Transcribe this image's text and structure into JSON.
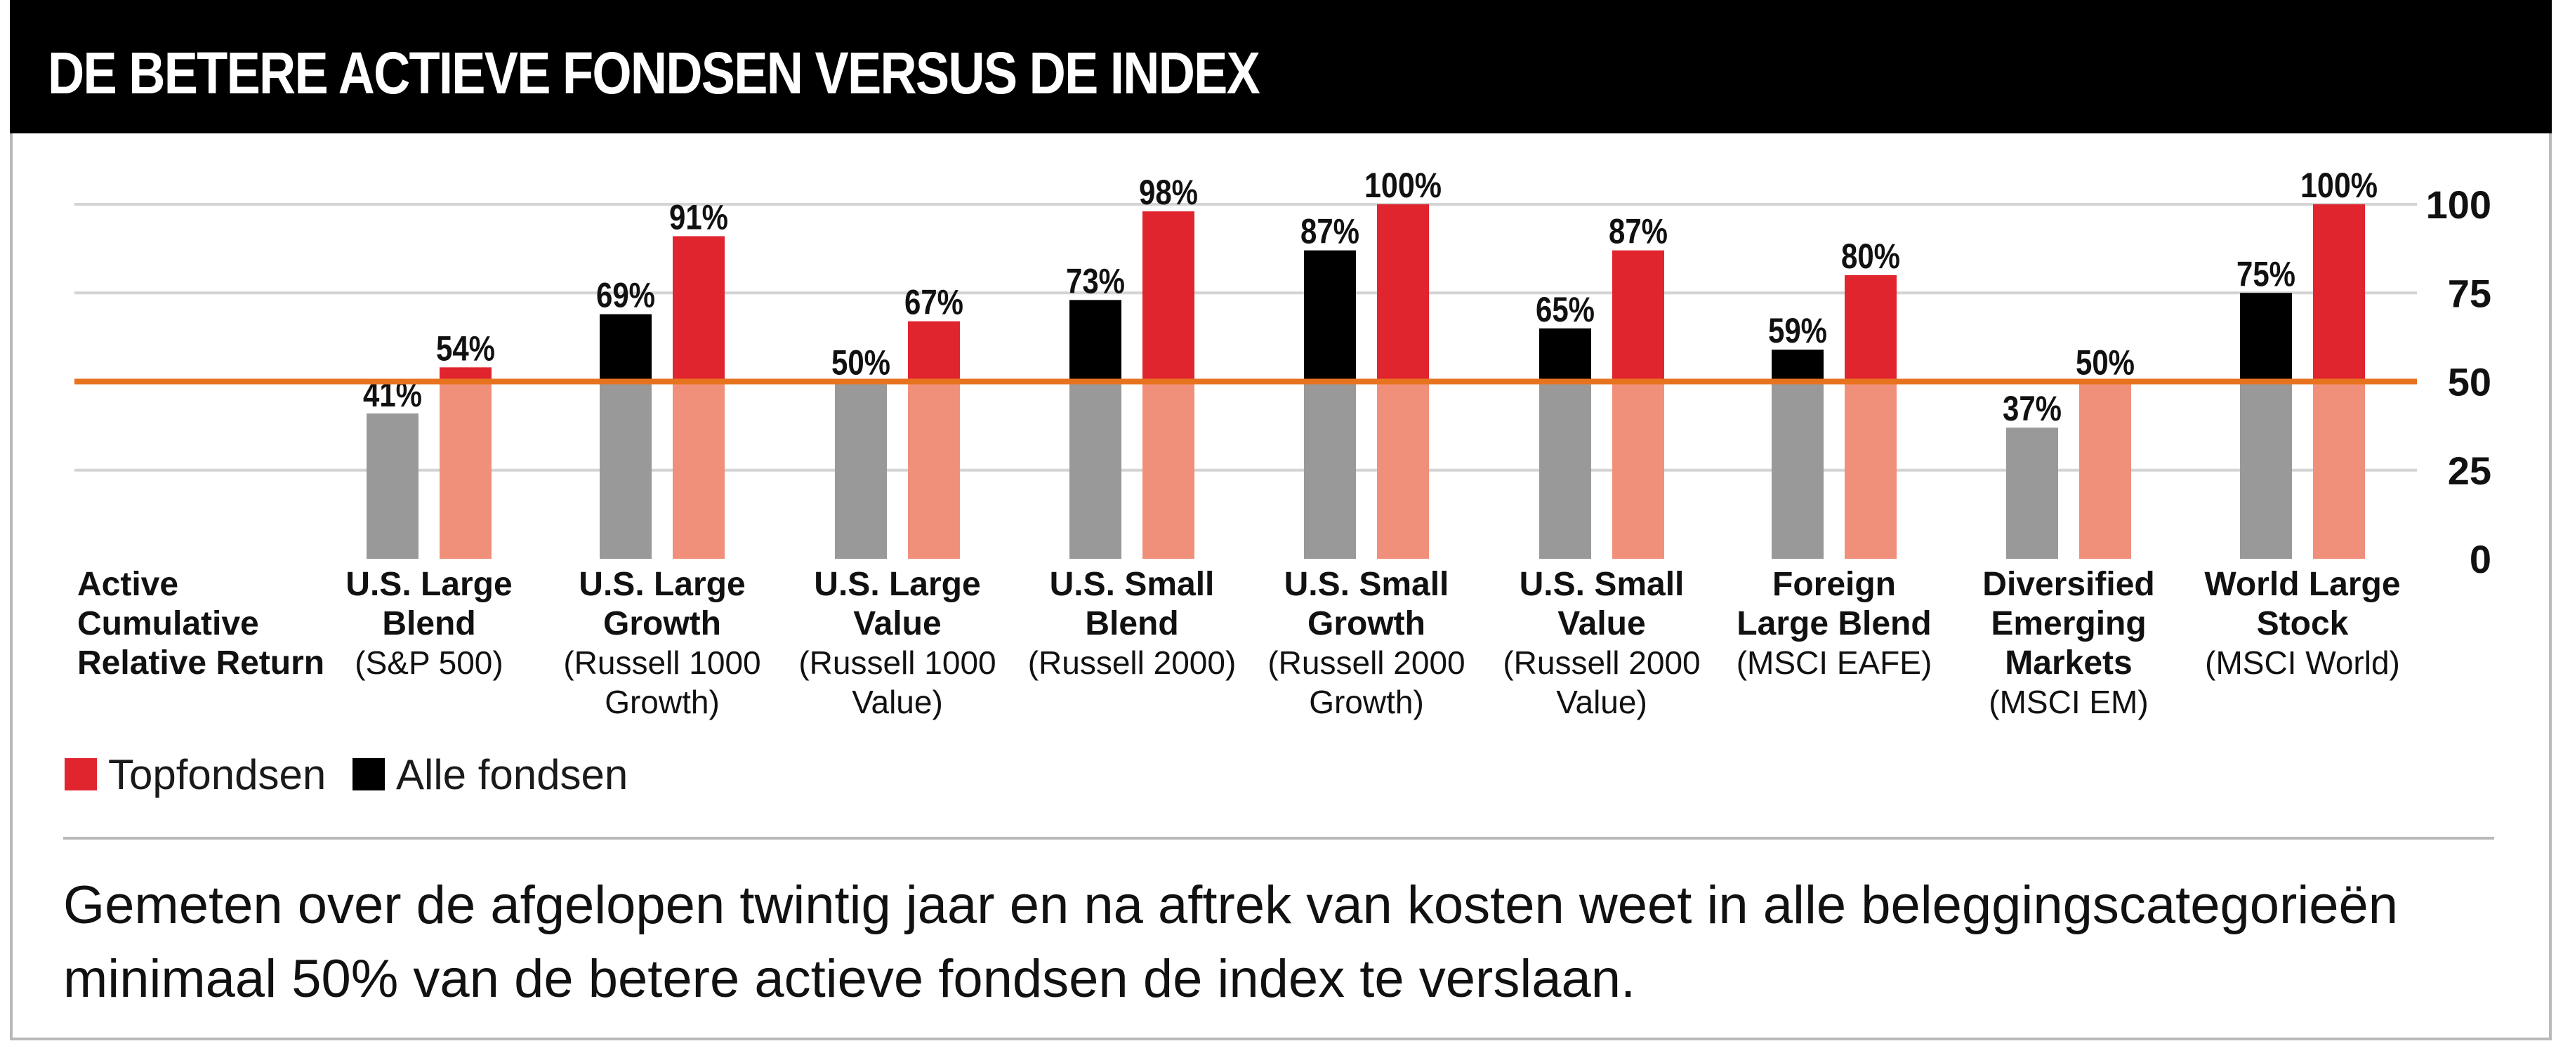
{
  "header": {
    "title": "DE BETERE ACTIEVE FONDSEN VERSUS DE INDEX"
  },
  "colors": {
    "top": "#e0252f",
    "all": "#000000",
    "top_below": "#f0907a",
    "all_below": "#999999",
    "reference_line": "#e8731f",
    "gridline": "#d4d4d4"
  },
  "chart_data": {
    "type": "bar",
    "title": "DE BETERE ACTIEVE FONDSEN VERSUS DE INDEX",
    "row_label": "Active Cumulative Relative Return",
    "row_label_lines": [
      "Active",
      "Cumulative",
      "Relative Return"
    ],
    "categories": [
      "U.S. Large Blend (S&P 500)",
      "U.S. Large Growth (Russell 1000 Growth)",
      "U.S. Large Value (Russell 1000 Value)",
      "U.S. Small Blend (Russell 2000)",
      "U.S. Small Growth (Russell 2000 Growth)",
      "U.S. Small Value (Russell 2000 Value)",
      "Foreign Large Blend (MSCI EAFE)",
      "Diversified Emerging Markets (MSCI EM)",
      "World Large Stock (MSCI World)"
    ],
    "category_labels": [
      {
        "bold": [
          "U.S. Large",
          "Blend"
        ],
        "normal": [
          "(S&P 500)"
        ]
      },
      {
        "bold": [
          "U.S. Large",
          "Growth"
        ],
        "normal": [
          "(Russell 1000",
          "Growth)"
        ]
      },
      {
        "bold": [
          "U.S. Large",
          "Value"
        ],
        "normal": [
          "(Russell 1000",
          "Value)"
        ]
      },
      {
        "bold": [
          "U.S. Small",
          "Blend"
        ],
        "normal": [
          "(Russell 2000)"
        ]
      },
      {
        "bold": [
          "U.S. Small",
          "Growth"
        ],
        "normal": [
          "(Russell 2000",
          "Growth)"
        ]
      },
      {
        "bold": [
          "U.S. Small",
          "Value"
        ],
        "normal": [
          "(Russell 2000",
          "Value)"
        ]
      },
      {
        "bold": [
          "Foreign",
          "Large Blend"
        ],
        "normal": [
          "(MSCI EAFE)"
        ]
      },
      {
        "bold": [
          "Diversified",
          "Emerging",
          "Markets"
        ],
        "normal": [
          "(MSCI EM)"
        ]
      },
      {
        "bold": [
          "World Large",
          "Stock"
        ],
        "normal": [
          "(MSCI World)"
        ]
      }
    ],
    "series": [
      {
        "name": "Alle fondsen",
        "values": [
          41,
          69,
          50,
          73,
          87,
          65,
          59,
          37,
          75
        ],
        "labels": [
          "41%",
          "69%",
          "50%",
          "73%",
          "87%",
          "65%",
          "59%",
          "37%",
          "75%"
        ]
      },
      {
        "name": "Topfondsen",
        "values": [
          54,
          91,
          67,
          98,
          100,
          87,
          80,
          50,
          100
        ],
        "labels": [
          "54%",
          "91%",
          "67%",
          "98%",
          "100%",
          "87%",
          "80%",
          "50%",
          "100%"
        ]
      }
    ],
    "reference_line": 50,
    "ylim": [
      0,
      100
    ],
    "yticks": [
      0,
      25,
      50,
      75,
      100
    ],
    "ytick_labels": [
      "0",
      "25",
      "50",
      "75",
      "100"
    ],
    "y_axis_position": "right",
    "grid": true,
    "legend": [
      "Topfondsen",
      "Alle fondsen"
    ],
    "legend_position": "bottom-left"
  },
  "legend": {
    "top_label": "Topfondsen",
    "all_label": "Alle fondsen"
  },
  "footnote": "Gemeten over de afgelopen twintig jaar en na aftrek van kosten weet in alle beleggingscategorieën minimaal 50% van de betere actieve fondsen de index te verslaan."
}
